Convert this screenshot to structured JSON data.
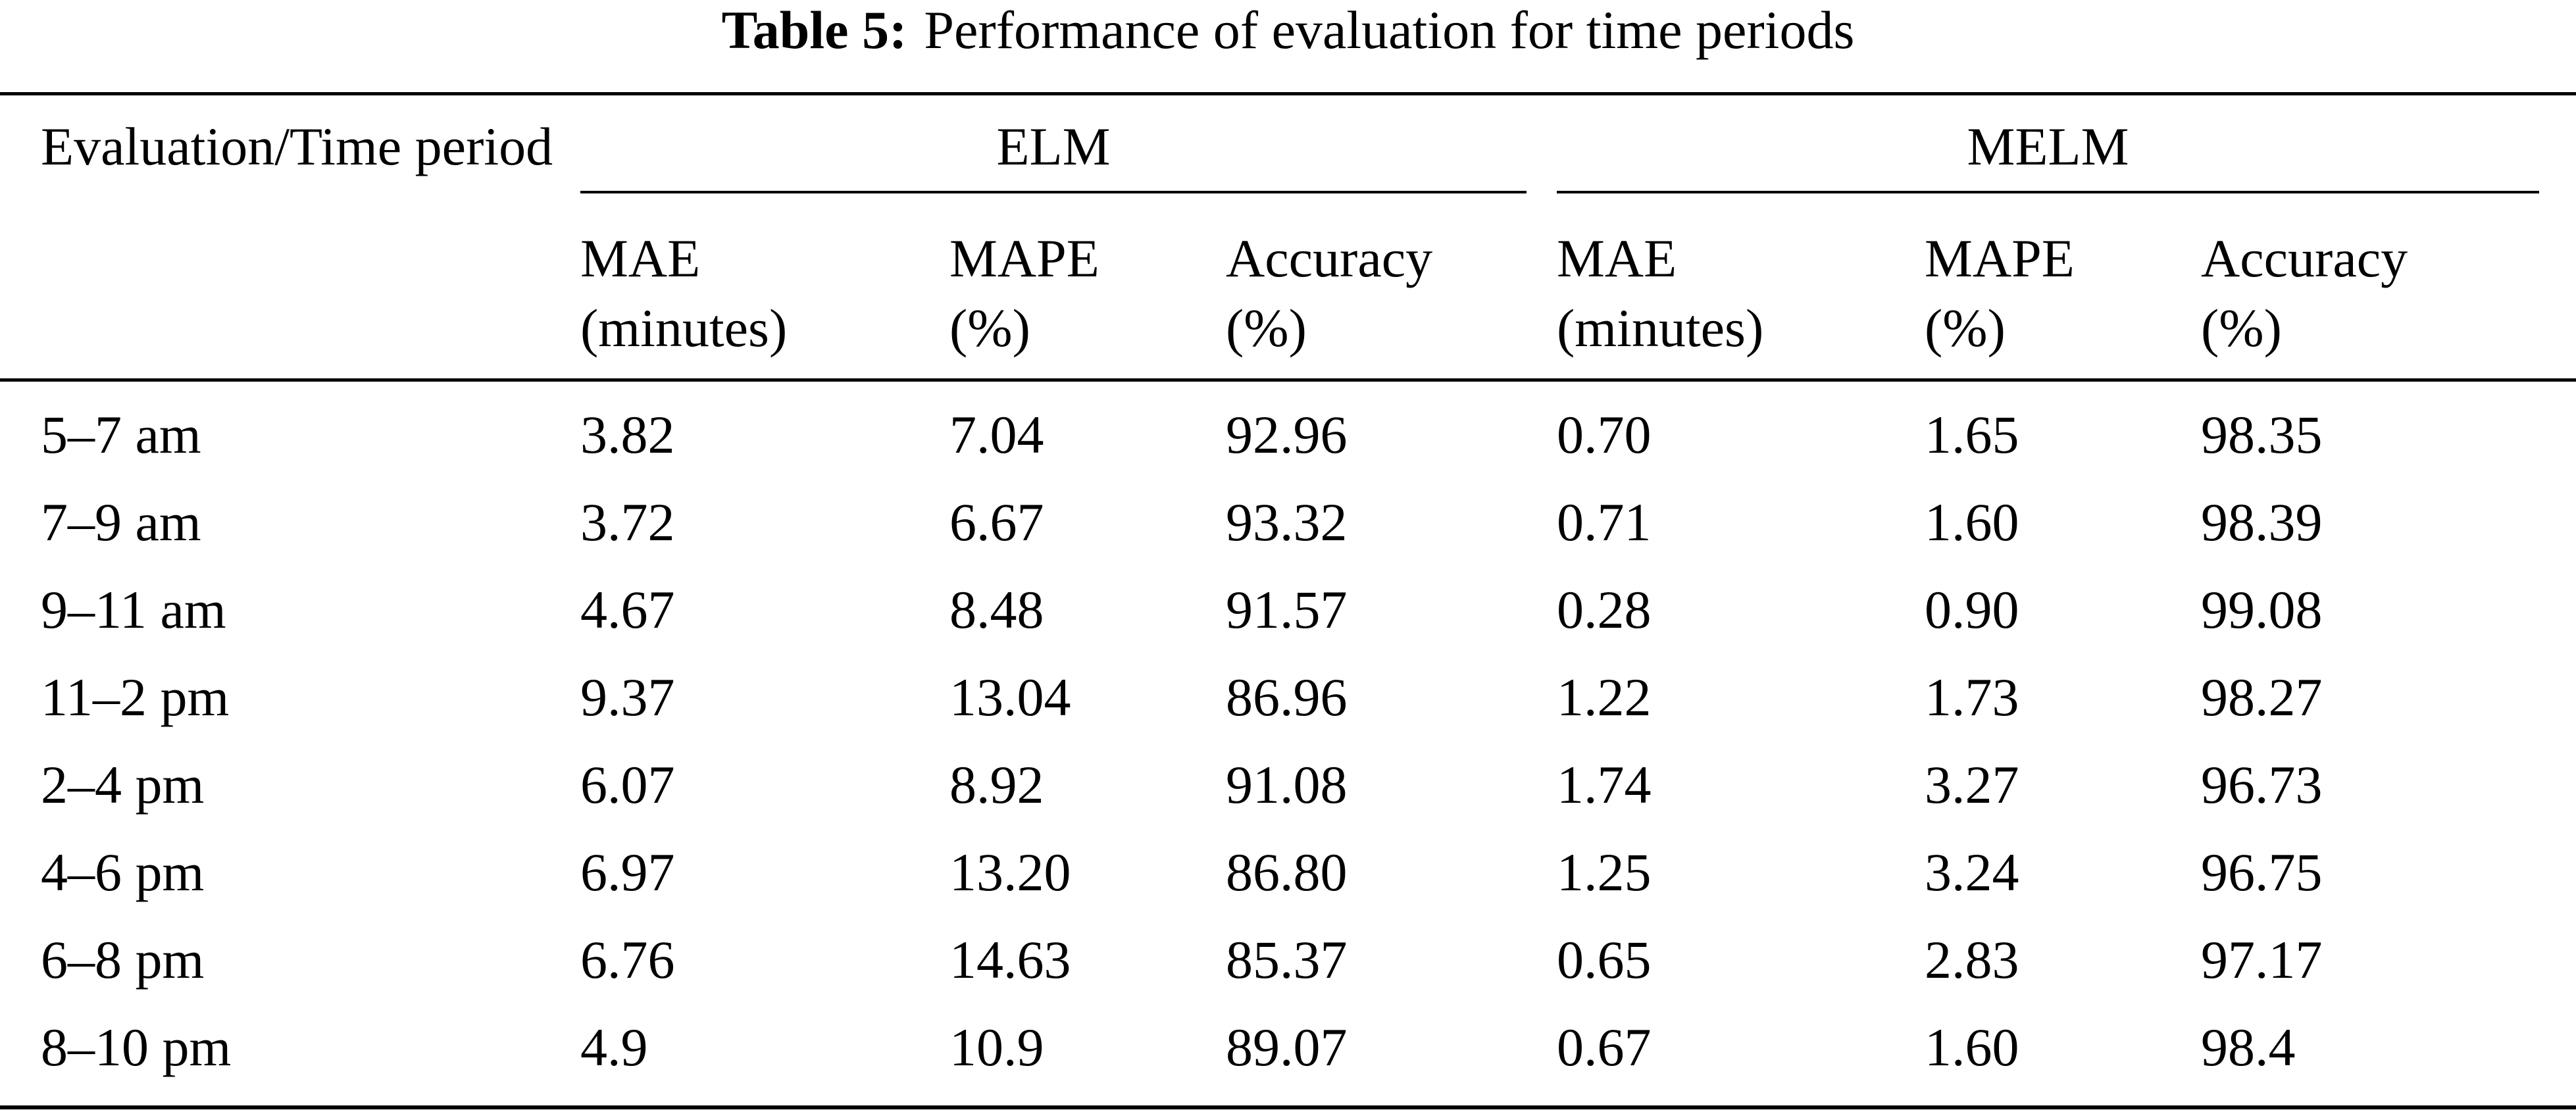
{
  "caption": {
    "label": "Table 5:",
    "text": "Performance of evaluation for time periods"
  },
  "header": {
    "stub": "Evaluation/Time period",
    "groups": [
      "ELM",
      "MELM"
    ],
    "sub": [
      {
        "line1": "MAE",
        "line2": "(minutes)"
      },
      {
        "line1": "MAPE",
        "line2": "(%)"
      },
      {
        "line1": "Accuracy",
        "line2": "(%)"
      },
      {
        "line1": "MAE",
        "line2": "(minutes)"
      },
      {
        "line1": "MAPE",
        "line2": "(%)"
      },
      {
        "line1": "Accuracy",
        "line2": "(%)"
      }
    ]
  },
  "rows": [
    {
      "period": "5–7 am",
      "values": [
        "3.82",
        "7.04",
        "92.96",
        "0.70",
        "1.65",
        "98.35"
      ]
    },
    {
      "period": "7–9 am",
      "values": [
        "3.72",
        "6.67",
        "93.32",
        "0.71",
        "1.60",
        "98.39"
      ]
    },
    {
      "period": "9–11 am",
      "values": [
        "4.67",
        "8.48",
        "91.57",
        "0.28",
        "0.90",
        "99.08"
      ]
    },
    {
      "period": "11–2 pm",
      "values": [
        "9.37",
        "13.04",
        "86.96",
        "1.22",
        "1.73",
        "98.27"
      ]
    },
    {
      "period": "2–4 pm",
      "values": [
        "6.07",
        "8.92",
        "91.08",
        "1.74",
        "3.27",
        "96.73"
      ]
    },
    {
      "period": "4–6 pm",
      "values": [
        "6.97",
        "13.20",
        "86.80",
        "1.25",
        "3.24",
        "96.75"
      ]
    },
    {
      "period": "6–8 pm",
      "values": [
        "6.76",
        "14.63",
        "85.37",
        "0.65",
        "2.83",
        "97.17"
      ]
    },
    {
      "period": "8–10 pm",
      "values": [
        "4.9",
        "10.9",
        "89.07",
        "0.67",
        "1.60",
        "98.4"
      ]
    }
  ]
}
